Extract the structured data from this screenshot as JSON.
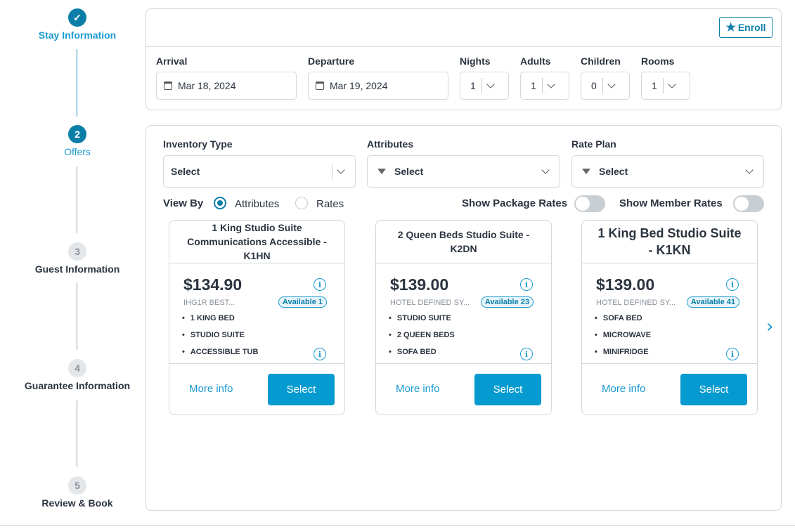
{
  "steps": [
    {
      "num": "✓",
      "label": "Stay Information",
      "state": "done"
    },
    {
      "num": "2",
      "label": "Offers",
      "state": "active"
    },
    {
      "num": "3",
      "label": "Guest Information",
      "state": "todo"
    },
    {
      "num": "4",
      "label": "Guarantee Information",
      "state": "todo"
    },
    {
      "num": "5",
      "label": "Review & Book",
      "state": "todo"
    }
  ],
  "stay": {
    "enroll_label": "Enroll",
    "arrival": {
      "label": "Arrival",
      "value": "Mar 18, 2024"
    },
    "departure": {
      "label": "Departure",
      "value": "Mar 19, 2024"
    },
    "nights": {
      "label": "Nights",
      "value": "1"
    },
    "adults": {
      "label": "Adults",
      "value": "1"
    },
    "children": {
      "label": "Children",
      "value": "0"
    },
    "rooms": {
      "label": "Rooms",
      "value": "1"
    }
  },
  "filters": {
    "inventory": {
      "label": "Inventory Type",
      "value": "Select"
    },
    "attributes": {
      "label": "Attributes",
      "value": "Select"
    },
    "rate_plan": {
      "label": "Rate Plan",
      "value": "Select"
    },
    "view_by": "View By",
    "opt_attributes": "Attributes",
    "opt_rates": "Rates",
    "selected_view": "Attributes",
    "show_package": "Show Package Rates",
    "show_member": "Show Member Rates",
    "package_on": false,
    "member_on": false
  },
  "offers": [
    {
      "title": "1 King Studio Suite Communications Accessible - K1HN",
      "price": "$134.90",
      "rate": "IHG1R BEST...",
      "available": "Available 1",
      "features": [
        "1 KING BED",
        "STUDIO SUITE",
        "ACCESSIBLE TUB"
      ],
      "more": "More info",
      "select": "Select"
    },
    {
      "title": "2 Queen Beds Studio Suite - K2DN",
      "price": "$139.00",
      "rate": "HOTEL DEFINED SY...",
      "available": "Available 23",
      "features": [
        "STUDIO SUITE",
        "2 QUEEN BEDS",
        "SOFA BED"
      ],
      "more": "More info",
      "select": "Select"
    },
    {
      "title": "1 King Bed Studio Suite - K1KN",
      "price": "$139.00",
      "rate": "HOTEL DEFINED SY...",
      "available": "Available 41",
      "features": [
        "SOFA BED",
        "MICROWAVE",
        "MINIFRIDGE"
      ],
      "more": "More info",
      "select": "Select"
    }
  ],
  "colors": {
    "accent": "#069bd0",
    "step_active": "#0b7ea8"
  }
}
